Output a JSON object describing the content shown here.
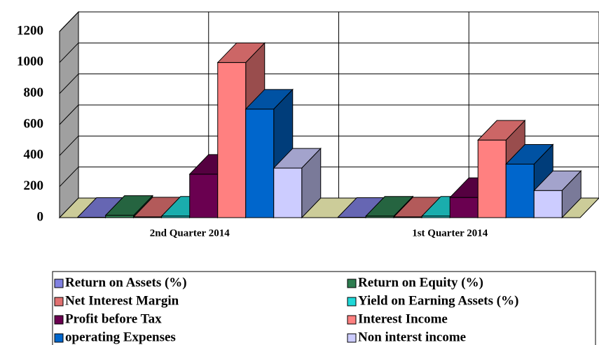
{
  "chart_data": {
    "type": "bar3d",
    "categories": [
      "2nd Quarter 2014",
      "1st Quarter 2014"
    ],
    "series": [
      {
        "name": "Return on Assets (%)",
        "color": "#8080e0",
        "values": [
          2,
          2
        ]
      },
      {
        "name": "Return on Equity (%)",
        "color": "#2e7d50",
        "values": [
          15,
          10
        ]
      },
      {
        "name": "Net Interest Margin",
        "color": "#e07070",
        "values": [
          5,
          5
        ]
      },
      {
        "name": "Yield on Earning Assets (%)",
        "color": "#20d8d8",
        "values": [
          10,
          10
        ]
      },
      {
        "name": "Profit before Tax",
        "color": "#6a0050",
        "values": [
          280,
          130
        ]
      },
      {
        "name": "Interest Income",
        "color": "#ff8080",
        "values": [
          1000,
          500
        ]
      },
      {
        "name": "operating Expenses",
        "color": "#0066cc",
        "values": [
          700,
          345
        ]
      },
      {
        "name": "Non interst income",
        "color": "#ccccff",
        "values": [
          320,
          175
        ]
      }
    ],
    "ylim": [
      0,
      1200
    ],
    "yticks": [
      0,
      200,
      400,
      600,
      800,
      1000,
      1200
    ],
    "grid": true
  }
}
